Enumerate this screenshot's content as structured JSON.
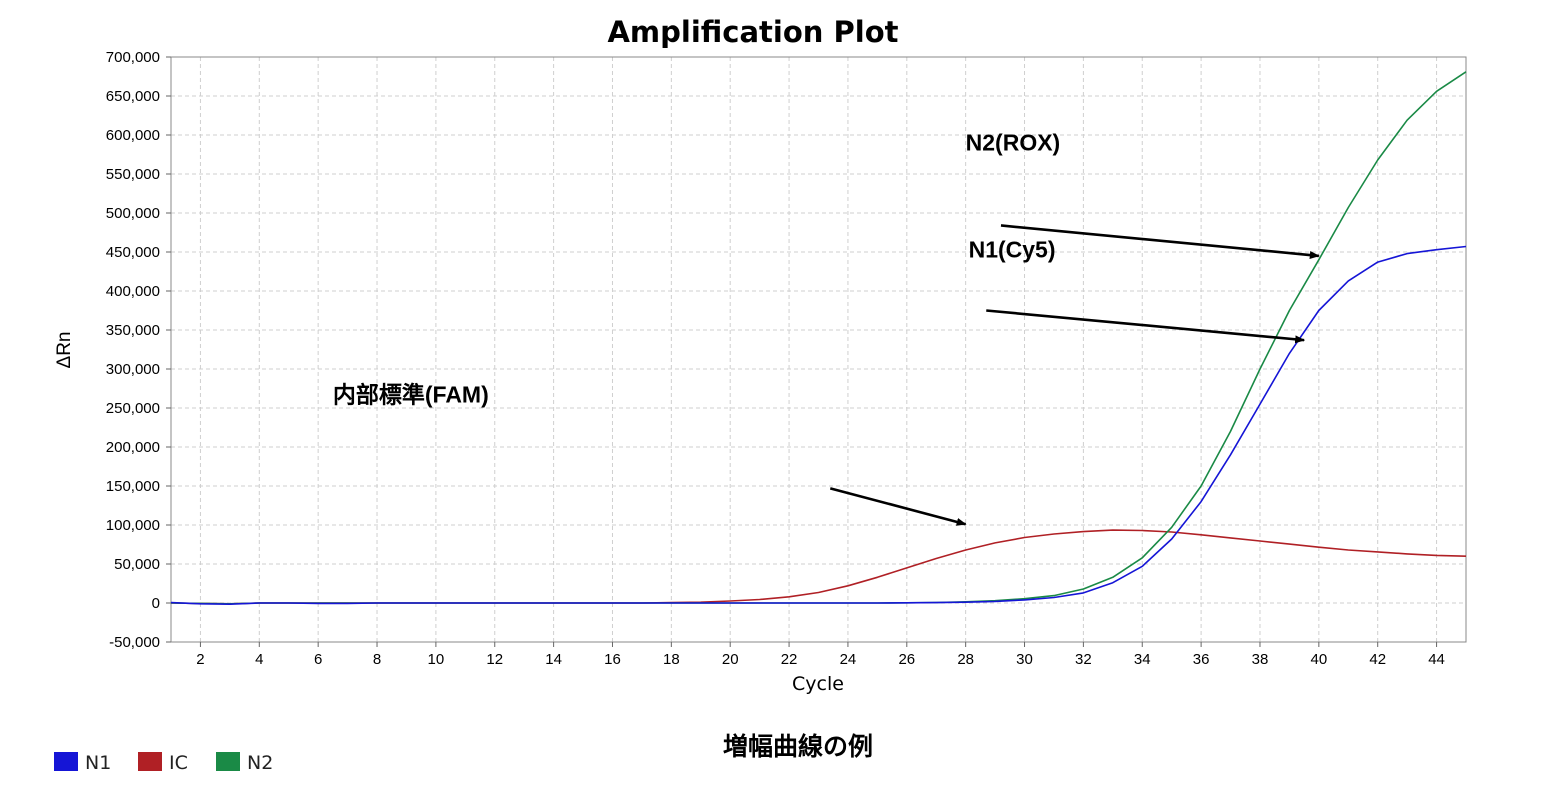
{
  "chart_data": {
    "type": "line",
    "title": "Amplification Plot",
    "xlabel": "Cycle",
    "ylabel": "ΔRn",
    "xlim": [
      1,
      45
    ],
    "ylim": [
      -50000,
      700000
    ],
    "xticks": [
      2,
      4,
      6,
      8,
      10,
      12,
      14,
      16,
      18,
      20,
      22,
      24,
      26,
      28,
      30,
      32,
      34,
      36,
      38,
      40,
      42,
      44
    ],
    "yticks": [
      -50000,
      0,
      50000,
      100000,
      150000,
      200000,
      250000,
      300000,
      350000,
      400000,
      450000,
      500000,
      550000,
      600000,
      650000,
      700000
    ],
    "ytick_labels": [
      "-50,000",
      "0",
      "50,000",
      "100,000",
      "150,000",
      "200,000",
      "250,000",
      "300,000",
      "350,000",
      "400,000",
      "450,000",
      "500,000",
      "550,000",
      "600,000",
      "650,000",
      "700,000"
    ],
    "grid": true,
    "legend_position": "bottom-left",
    "x": [
      1,
      2,
      3,
      4,
      5,
      6,
      7,
      8,
      9,
      10,
      11,
      12,
      13,
      14,
      15,
      16,
      17,
      18,
      19,
      20,
      21,
      22,
      23,
      24,
      25,
      26,
      27,
      28,
      29,
      30,
      31,
      32,
      33,
      34,
      35,
      36,
      37,
      38,
      39,
      40,
      41,
      42,
      43,
      44,
      45
    ],
    "series": [
      {
        "name": "N1",
        "color": "#1515d6",
        "values": [
          500,
          -1000,
          -1500,
          0,
          0,
          -500,
          -500,
          0,
          0,
          0,
          0,
          0,
          0,
          0,
          0,
          0,
          0,
          0,
          0,
          0,
          0,
          0,
          0,
          0,
          0,
          200,
          500,
          1000,
          2000,
          4000,
          7000,
          13000,
          26000,
          47000,
          82000,
          130000,
          190000,
          255000,
          320000,
          375000,
          413000,
          437000,
          448000,
          453000,
          457000
        ]
      },
      {
        "name": "IC",
        "color": "#b02025",
        "values": [
          0,
          -500,
          -1000,
          0,
          0,
          0,
          0,
          0,
          0,
          0,
          0,
          0,
          0,
          0,
          0,
          0,
          0,
          500,
          1000,
          2500,
          4500,
          8000,
          13500,
          22000,
          33000,
          45000,
          57000,
          68000,
          77000,
          84000,
          88500,
          91500,
          93500,
          93000,
          91000,
          87500,
          83500,
          79500,
          75500,
          71500,
          68000,
          65500,
          63000,
          61000,
          60000
        ]
      },
      {
        "name": "N2",
        "color": "#1a8a46",
        "values": [
          0,
          -500,
          -1000,
          0,
          0,
          0,
          0,
          0,
          0,
          0,
          0,
          0,
          0,
          0,
          0,
          0,
          0,
          0,
          0,
          0,
          0,
          0,
          0,
          0,
          0,
          300,
          700,
          1500,
          3000,
          5500,
          9500,
          18000,
          33000,
          58000,
          97000,
          150000,
          220000,
          300000,
          375000,
          440000,
          507000,
          568000,
          619000,
          656000,
          681000
        ]
      }
    ],
    "annotations": [
      {
        "text": "N2(ROX)",
        "x": 28.0,
        "y": 580000
      },
      {
        "text": "N1(Cy5)",
        "x": 28.1,
        "y": 443000
      },
      {
        "text": "内部標準(FAM)",
        "x": 6.5,
        "y": 257000
      }
    ],
    "arrows": [
      {
        "x1": 29.2,
        "y1": 484000,
        "x2": 40.0,
        "y2": 445000
      },
      {
        "x1": 28.7,
        "y1": 375000,
        "x2": 39.5,
        "y2": 337000
      },
      {
        "x1": 23.4,
        "y1": 147000,
        "x2": 28.0,
        "y2": 101000
      }
    ]
  },
  "caption": "増幅曲線の例"
}
